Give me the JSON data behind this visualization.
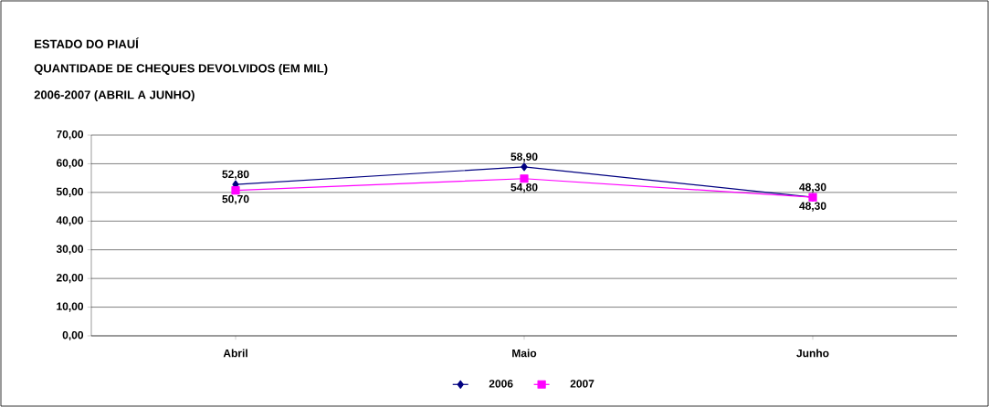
{
  "chart_data": {
    "type": "line",
    "title": "ESTADO DO PIAUÍ",
    "subtitle": "QUANTIDADE DE CHEQUES DEVOLVIDOS (EM MIL)",
    "annotations": [
      "2006-2007 (ABRIL A JUNHO)"
    ],
    "categories": [
      "Abril",
      "Maio",
      "Junho"
    ],
    "series": [
      {
        "name": "2006",
        "color": "#000080",
        "marker": "diamond",
        "values": [
          52.8,
          58.9,
          48.3
        ],
        "value_labels": [
          "52,80",
          "58,90",
          "48,30"
        ]
      },
      {
        "name": "2007",
        "color": "#ff00ff",
        "marker": "square",
        "values": [
          50.7,
          54.8,
          48.3
        ],
        "value_labels": [
          "50,70",
          "54,80",
          "48,30"
        ]
      }
    ],
    "ylim": [
      0,
      70
    ],
    "yticks": [
      {
        "value": 0,
        "label": "0,00"
      },
      {
        "value": 10,
        "label": "10,00"
      },
      {
        "value": 20,
        "label": "20,00"
      },
      {
        "value": 30,
        "label": "30,00"
      },
      {
        "value": 40,
        "label": "40,00"
      },
      {
        "value": 50,
        "label": "50,00"
      },
      {
        "value": 60,
        "label": "60,00"
      },
      {
        "value": 70,
        "label": "70,00"
      }
    ],
    "grid": "y",
    "legend": "bottom",
    "line_style": "solid"
  }
}
